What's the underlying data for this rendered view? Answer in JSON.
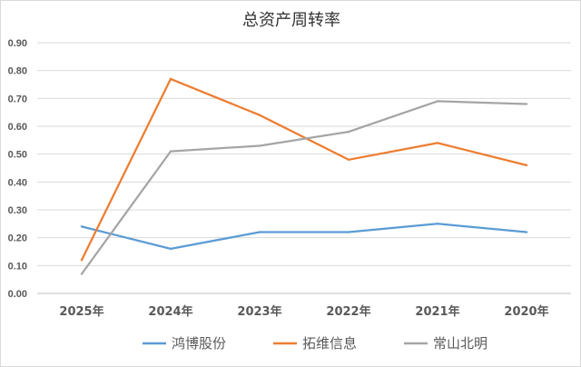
{
  "chart_data": {
    "type": "line",
    "title": "总资产周转率",
    "categories": [
      "2025年",
      "2024年",
      "2023年",
      "2022年",
      "2021年",
      "2020年"
    ],
    "ylim": [
      0,
      0.9
    ],
    "yticks": [
      "0.00",
      "0.10",
      "0.20",
      "0.30",
      "0.40",
      "0.50",
      "0.60",
      "0.70",
      "0.80",
      "0.90"
    ],
    "grid": true,
    "legend_position": "bottom",
    "series": [
      {
        "name": "鸿博股份",
        "color": "#5B9BD5",
        "values": [
          0.24,
          0.16,
          0.22,
          0.22,
          0.25,
          0.22
        ]
      },
      {
        "name": "拓维信息",
        "color": "#ED7D31",
        "values": [
          0.12,
          0.77,
          0.64,
          0.48,
          0.54,
          0.46
        ]
      },
      {
        "name": "常山北明",
        "color": "#A5A5A5",
        "values": [
          0.07,
          0.51,
          0.53,
          0.58,
          0.69,
          0.68
        ]
      }
    ]
  }
}
